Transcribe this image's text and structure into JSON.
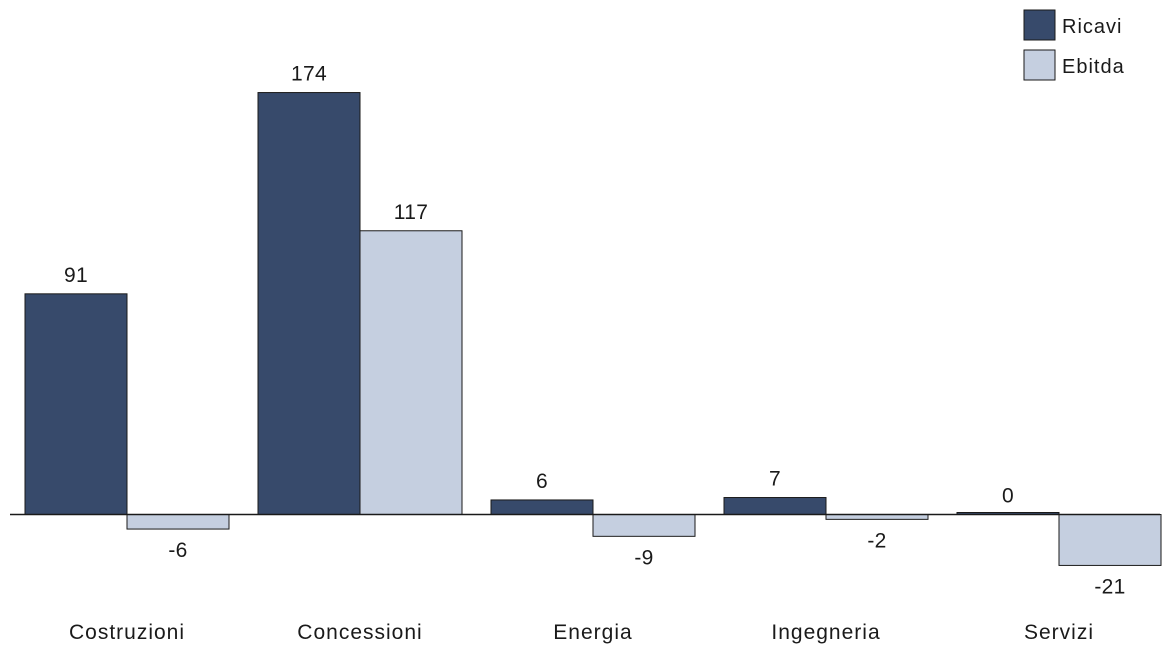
{
  "chart_data": {
    "type": "bar",
    "categories": [
      "Costruzioni",
      "Concessioni",
      "Energia",
      "Ingegneria",
      "Servizi"
    ],
    "series": [
      {
        "name": "Ricavi",
        "values": [
          91,
          174,
          6,
          7,
          0
        ],
        "color": "#374a6b"
      },
      {
        "name": "Ebitda",
        "values": [
          -6,
          117,
          -9,
          -2,
          -21
        ],
        "color": "#c5cfe0"
      }
    ],
    "data_labels": [
      [
        "91",
        "174",
        "6",
        "7",
        "0"
      ],
      [
        "-6",
        "117",
        "-9",
        "-2",
        "-21"
      ]
    ],
    "title": "",
    "xlabel": "",
    "ylabel": "",
    "ylim": [
      -21,
      174
    ],
    "grid": false,
    "legend": "top-right"
  }
}
